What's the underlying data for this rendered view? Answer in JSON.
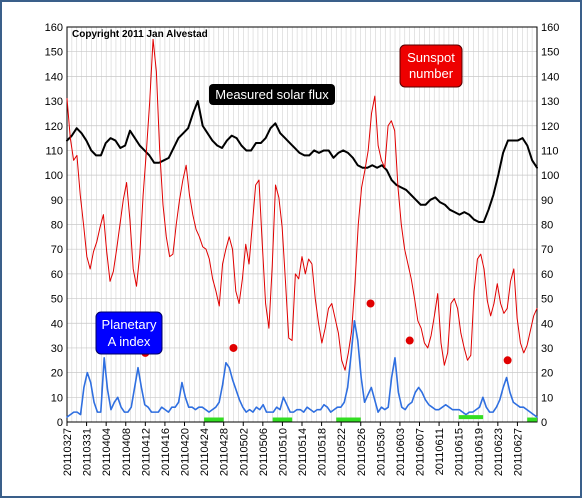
{
  "chart_data": {
    "type": "line",
    "copyright": "Copyright 2011 Jan Alvestad",
    "annotations": {
      "solar_flux": "Measured solar flux",
      "sunspot": [
        "Sunspot",
        "number"
      ],
      "planetary": [
        "Planetary",
        "A index"
      ]
    },
    "ylim": [
      0,
      160
    ],
    "yticks": [
      0,
      10,
      20,
      30,
      40,
      50,
      60,
      70,
      80,
      90,
      100,
      110,
      120,
      130,
      140,
      150,
      160
    ],
    "grid": true,
    "x_start": "2011-03-27",
    "x_end": "2011-07-01",
    "xtick_labels": [
      "20110327",
      "20110331",
      "20110404",
      "20110408",
      "20110412",
      "20110416",
      "20110420",
      "20110424",
      "20110428",
      "20110502",
      "20110506",
      "20110510",
      "20110514",
      "20110518",
      "20110522",
      "20110526",
      "20110530",
      "20110603",
      "20110607",
      "20110611",
      "20110615",
      "20110619",
      "20110623",
      "20110627"
    ],
    "colors": {
      "solar_flux": "#000000",
      "sunspot": "#e00000",
      "a_index": "#2f6fe0",
      "storm_bars": "#33dd22",
      "event_dots": "#e00000",
      "grid": "#c8c8c8",
      "sunspot_box": "#ee0000",
      "planetary_box": "#0000ff"
    },
    "series": [
      {
        "name": "Measured solar flux",
        "color": "#000000",
        "values": [
          114,
          116,
          119,
          117,
          114,
          110,
          108,
          108,
          113,
          115,
          114,
          111,
          112,
          118,
          115,
          112,
          110,
          108,
          105,
          105,
          106,
          107,
          111,
          115,
          117,
          119,
          125,
          130,
          120,
          117,
          114,
          112,
          111,
          114,
          116,
          115,
          112,
          110,
          110,
          113,
          113,
          115,
          119,
          121,
          117,
          115,
          113,
          111,
          109,
          108,
          108,
          110,
          109,
          110,
          110,
          107,
          109,
          110,
          109,
          107,
          104,
          103,
          103,
          104,
          103,
          104,
          102,
          98,
          96,
          95,
          94,
          92,
          90,
          88,
          88,
          90,
          91,
          89,
          88,
          86,
          85,
          84,
          85,
          84,
          82,
          81,
          81,
          86,
          92,
          100,
          109,
          114,
          114,
          114,
          115,
          112,
          106,
          103
        ]
      },
      {
        "name": "Sunspot number",
        "color": "#e00000",
        "values": [
          131,
          115,
          106,
          108,
          92,
          80,
          67,
          62,
          69,
          73,
          79,
          84,
          69,
          57,
          61,
          70,
          80,
          90,
          97,
          82,
          62,
          55,
          68,
          92,
          110,
          130,
          155,
          142,
          110,
          88,
          75,
          67,
          68,
          80,
          90,
          98,
          104,
          92,
          84,
          78,
          75,
          71,
          70,
          66,
          58,
          53,
          47,
          64,
          70,
          75,
          70,
          53,
          48,
          58,
          72,
          64,
          80,
          96,
          98,
          72,
          48,
          38,
          63,
          96,
          91,
          79,
          57,
          34,
          33,
          60,
          58,
          67,
          60,
          66,
          64,
          50,
          40,
          32,
          38,
          46,
          48,
          42,
          36,
          25,
          21,
          28,
          37,
          56,
          80,
          95,
          102,
          110,
          125,
          132,
          112,
          106,
          103,
          120,
          122,
          118,
          95,
          80,
          70,
          64,
          58,
          50,
          41,
          38,
          32,
          30,
          35,
          43,
          52,
          32,
          23,
          28,
          48,
          50,
          46,
          36,
          30,
          25,
          27,
          53,
          66,
          68,
          62,
          49,
          43,
          48,
          56,
          48,
          44,
          46,
          57,
          62,
          42,
          32,
          28,
          31,
          37,
          43,
          46
        ]
      },
      {
        "name": "Planetary A index",
        "color": "#2f6fe0",
        "values": [
          2,
          3,
          4,
          4,
          3,
          14,
          20,
          16,
          8,
          4,
          4,
          26,
          13,
          5,
          8,
          10,
          6,
          4,
          4,
          6,
          14,
          22,
          14,
          7,
          6,
          4,
          4,
          4,
          6,
          5,
          4,
          6,
          6,
          8,
          16,
          10,
          6,
          6,
          5,
          6,
          6,
          5,
          4,
          5,
          6,
          8,
          15,
          24,
          22,
          17,
          13,
          9,
          6,
          4,
          5,
          4,
          6,
          5,
          7,
          4,
          4,
          4,
          6,
          5,
          10,
          7,
          4,
          4,
          5,
          5,
          4,
          6,
          5,
          4,
          5,
          5,
          7,
          6,
          4,
          5,
          6,
          6,
          8,
          14,
          27,
          41,
          33,
          18,
          8,
          11,
          14,
          9,
          4,
          6,
          5,
          6,
          18,
          26,
          12,
          6,
          5,
          7,
          8,
          12,
          14,
          12,
          9,
          7,
          6,
          5,
          5,
          6,
          7,
          6,
          5,
          5,
          5,
          4,
          3,
          4,
          4,
          5,
          6,
          10,
          6,
          4,
          4,
          6,
          9,
          14,
          18,
          12,
          8,
          7,
          6,
          6,
          5,
          4,
          3,
          2
        ]
      }
    ],
    "event_dots": [
      {
        "date": "2011-04-12",
        "value": 28
      },
      {
        "date": "2011-04-30",
        "value": 30
      },
      {
        "date": "2011-05-28",
        "value": 48
      },
      {
        "date": "2011-06-05",
        "value": 33
      },
      {
        "date": "2011-06-25",
        "value": 25
      }
    ],
    "storm_bars": [
      {
        "start": "2011-04-24",
        "end": "2011-04-28",
        "value": 1
      },
      {
        "start": "2011-05-08",
        "end": "2011-05-12",
        "value": 1
      },
      {
        "start": "2011-05-21",
        "end": "2011-05-26",
        "value": 1
      },
      {
        "start": "2011-06-15",
        "end": "2011-06-20",
        "value": 2
      },
      {
        "start": "2011-06-29",
        "end": "2011-07-01",
        "value": 1
      }
    ]
  }
}
